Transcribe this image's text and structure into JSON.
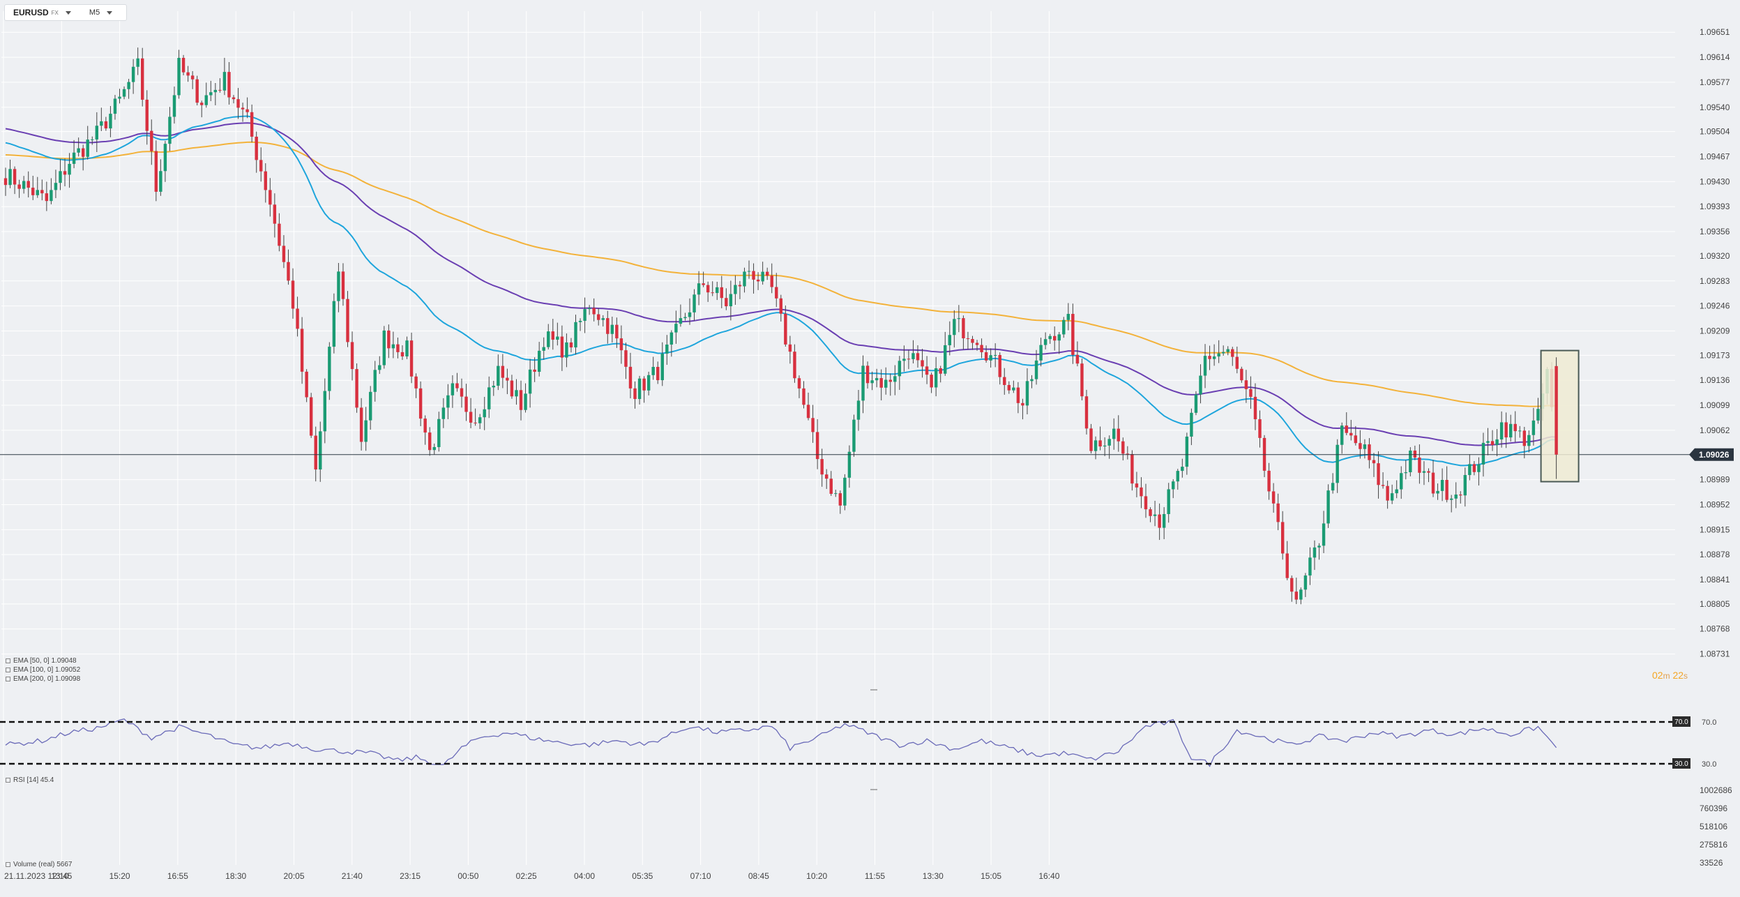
{
  "toolbar": {
    "symbol": "EURUSD",
    "symbol_type": "FX",
    "timeframe": "M5"
  },
  "countdown": {
    "minutes": "02",
    "minutes_unit": "m",
    "seconds": "22",
    "seconds_unit": "s"
  },
  "legend": {
    "ema50": "EMA [50, 0] 1.09048",
    "ema100": "EMA [100, 0] 1.09052",
    "ema200": "EMA [200, 0] 1.09098",
    "rsi": "RSI [14] 45.4",
    "volume": "Volume (real) 5667"
  },
  "colors": {
    "background": "#eef0f3",
    "up": "#1a9b73",
    "down": "#d8303f",
    "ema50": "#1ea5dc",
    "ema100": "#6a3fb2",
    "ema200": "#f3b23a",
    "rsi": "#6a6ab8",
    "price_line": "#2f3a44",
    "highlight_fill": "#efebd2",
    "highlight_stroke": "#4a5a55"
  },
  "chart_data": {
    "type": "candlestick",
    "title": "EURUSD M5",
    "x_ticks": [
      "21.11.2023  12:10",
      "13:45",
      "15:20",
      "16:55",
      "18:30",
      "20:05",
      "21:40",
      "23:15",
      "00:50",
      "02:25",
      "04:00",
      "05:35",
      "07:10",
      "08:45",
      "10:20",
      "11:55",
      "13:30",
      "15:05",
      "16:40"
    ],
    "y_ticks": [
      "1.09651",
      "1.09614",
      "1.09577",
      "1.09540",
      "1.09504",
      "1.09467",
      "1.09430",
      "1.09393",
      "1.09356",
      "1.09320",
      "1.09283",
      "1.09246",
      "1.09209",
      "1.09173",
      "1.09136",
      "1.09099",
      "1.09062",
      "1.08989",
      "1.08952",
      "1.08915",
      "1.08878",
      "1.08841",
      "1.08805",
      "1.08768",
      "1.08731"
    ],
    "price_range": [
      1.08712,
      1.09676
    ],
    "current_price": "1.09026",
    "current_price_value": 1.09026,
    "close_anchors": [
      [
        0,
        1.0944
      ],
      [
        5,
        1.0942
      ],
      [
        9,
        1.094
      ],
      [
        14,
        1.0946
      ],
      [
        20,
        1.095
      ],
      [
        25,
        1.0955
      ],
      [
        29,
        1.096
      ],
      [
        33,
        1.0942
      ],
      [
        38,
        1.096
      ],
      [
        43,
        1.0955
      ],
      [
        48,
        1.0958
      ],
      [
        53,
        1.0952
      ],
      [
        58,
        1.094
      ],
      [
        63,
        1.0925
      ],
      [
        68,
        1.09
      ],
      [
        73,
        1.093
      ],
      [
        78,
        1.0905
      ],
      [
        83,
        1.092
      ],
      [
        88,
        1.0918
      ],
      [
        93,
        1.0903
      ],
      [
        98,
        1.0912
      ],
      [
        103,
        1.0908
      ],
      [
        108,
        1.0915
      ],
      [
        113,
        1.091
      ],
      [
        118,
        1.092
      ],
      [
        123,
        1.0918
      ],
      [
        128,
        1.0925
      ],
      [
        133,
        1.0921
      ],
      [
        138,
        1.0912
      ],
      [
        143,
        1.0915
      ],
      [
        148,
        1.0922
      ],
      [
        153,
        1.0928
      ],
      [
        158,
        1.0925
      ],
      [
        163,
        1.093
      ],
      [
        168,
        1.0927
      ],
      [
        173,
        1.0915
      ],
      [
        178,
        1.0902
      ],
      [
        183,
        1.0895
      ],
      [
        188,
        1.0915
      ],
      [
        193,
        1.0913
      ],
      [
        198,
        1.0918
      ],
      [
        203,
        1.0912
      ],
      [
        208,
        1.0922
      ],
      [
        213,
        1.092
      ],
      [
        218,
        1.0915
      ],
      [
        223,
        1.091
      ],
      [
        228,
        1.092
      ],
      [
        233,
        1.0922
      ],
      [
        238,
        1.0904
      ],
      [
        243,
        1.0906
      ],
      [
        248,
        1.0898
      ],
      [
        253,
        1.0893
      ],
      [
        258,
        1.0901
      ],
      [
        263,
        1.0917
      ],
      [
        268,
        1.0918
      ],
      [
        273,
        1.091
      ],
      [
        278,
        1.0894
      ],
      [
        283,
        1.088
      ],
      [
        288,
        1.089
      ],
      [
        293,
        1.0906
      ],
      [
        298,
        1.0903
      ],
      [
        303,
        1.0896
      ],
      [
        308,
        1.0902
      ],
      [
        313,
        1.0898
      ],
      [
        318,
        1.0897
      ],
      [
        323,
        1.0902
      ],
      [
        328,
        1.0907
      ],
      [
        333,
        1.0905
      ],
      [
        336,
        1.0908
      ],
      [
        338,
        1.0915
      ],
      [
        340,
        1.09026
      ]
    ],
    "ema50_last": 1.09048,
    "ema100_last": 1.09052,
    "ema200_last": 1.09098,
    "ema50_start": 1.0949,
    "ema100_start": 1.0951,
    "ema200_start": 1.0947,
    "rsi": {
      "label": "RSI [14]",
      "last": 45.4,
      "levels": [
        70,
        30
      ],
      "level_labels": [
        "70.0",
        "30.0"
      ],
      "range": [
        20,
        80
      ],
      "anchors": [
        [
          0,
          48
        ],
        [
          8,
          52
        ],
        [
          14,
          60
        ],
        [
          20,
          64
        ],
        [
          26,
          72
        ],
        [
          32,
          55
        ],
        [
          38,
          65
        ],
        [
          44,
          58
        ],
        [
          50,
          48
        ],
        [
          56,
          45
        ],
        [
          62,
          50
        ],
        [
          68,
          44
        ],
        [
          74,
          42
        ],
        [
          80,
          40
        ],
        [
          86,
          33
        ],
        [
          90,
          36
        ],
        [
          96,
          28
        ],
        [
          100,
          45
        ],
        [
          104,
          55
        ],
        [
          110,
          60
        ],
        [
          116,
          54
        ],
        [
          122,
          50
        ],
        [
          128,
          48
        ],
        [
          134,
          52
        ],
        [
          140,
          48
        ],
        [
          146,
          58
        ],
        [
          150,
          66
        ],
        [
          156,
          60
        ],
        [
          162,
          62
        ],
        [
          168,
          66
        ],
        [
          172,
          45
        ],
        [
          178,
          55
        ],
        [
          184,
          68
        ],
        [
          190,
          58
        ],
        [
          196,
          48
        ],
        [
          202,
          52
        ],
        [
          208,
          44
        ],
        [
          214,
          52
        ],
        [
          220,
          45
        ],
        [
          226,
          38
        ],
        [
          232,
          40
        ],
        [
          238,
          34
        ],
        [
          244,
          42
        ],
        [
          250,
          66
        ],
        [
          256,
          70
        ],
        [
          260,
          36
        ],
        [
          264,
          30
        ],
        [
          270,
          62
        ],
        [
          276,
          55
        ],
        [
          282,
          48
        ],
        [
          288,
          56
        ],
        [
          294,
          52
        ],
        [
          300,
          60
        ],
        [
          306,
          56
        ],
        [
          312,
          62
        ],
        [
          318,
          58
        ],
        [
          324,
          64
        ],
        [
          330,
          58
        ],
        [
          336,
          65
        ],
        [
          340,
          45.4
        ]
      ]
    },
    "volume": {
      "label": "Volume (real)",
      "last": 5667,
      "y_ticks": [
        "1002686",
        "760396",
        "518106",
        "275816",
        "33526"
      ]
    }
  }
}
